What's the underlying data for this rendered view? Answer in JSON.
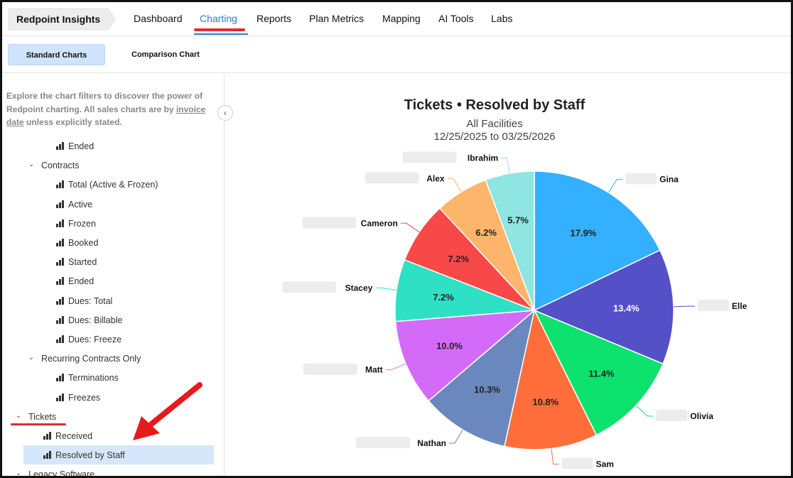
{
  "brand": "Redpoint Insights",
  "nav": [
    "Dashboard",
    "Charting",
    "Reports",
    "Plan Metrics",
    "Mapping",
    "AI Tools",
    "Labs"
  ],
  "subtabs": [
    "Standard Charts",
    "Comparison Chart"
  ],
  "sidebar": {
    "intro_1": "Explore the chart filters to discover the power of Redpoint charting. All sales charts are by ",
    "intro_link": "invoice date",
    "intro_2": " unless explicitly stated.",
    "tree": [
      {
        "label": "Ended",
        "type": "leaf",
        "level": 2
      },
      {
        "label": "Contracts",
        "type": "group",
        "level": 1
      },
      {
        "label": "Total (Active & Frozen)",
        "type": "leaf",
        "level": 2
      },
      {
        "label": "Active",
        "type": "leaf",
        "level": 2
      },
      {
        "label": "Frozen",
        "type": "leaf",
        "level": 2
      },
      {
        "label": "Booked",
        "type": "leaf",
        "level": 2
      },
      {
        "label": "Started",
        "type": "leaf",
        "level": 2
      },
      {
        "label": "Ended",
        "type": "leaf",
        "level": 2
      },
      {
        "label": "Dues: Total",
        "type": "leaf",
        "level": 2
      },
      {
        "label": "Dues: Billable",
        "type": "leaf",
        "level": 2
      },
      {
        "label": "Dues: Freeze",
        "type": "leaf",
        "level": 2
      },
      {
        "label": "Recurring Contracts Only",
        "type": "group",
        "level": 1
      },
      {
        "label": "Terminations",
        "type": "leaf",
        "level": 2
      },
      {
        "label": "Freezes",
        "type": "leaf",
        "level": 2
      },
      {
        "label": "Tickets",
        "type": "group",
        "level": 0
      },
      {
        "label": "Received",
        "type": "leaf",
        "level": 1
      },
      {
        "label": "Resolved by Staff",
        "type": "leaf",
        "level": 1,
        "selected": true
      },
      {
        "label": "Legacy Software",
        "type": "group",
        "level": 0
      }
    ]
  },
  "chart_data": {
    "type": "pie",
    "title": "Tickets • Resolved by Staff",
    "subtitle": "All Facilities",
    "date_range": "12/25/2025 to 03/25/2026",
    "slices": [
      {
        "name": "Gina",
        "value": 17.9,
        "label": "17.9%",
        "color": "#33b0ff"
      },
      {
        "name": "Elle",
        "value": 13.4,
        "label": "13.4%",
        "color": "#5450c8"
      },
      {
        "name": "Olivia",
        "value": 11.4,
        "label": "11.4%",
        "color": "#0de26e"
      },
      {
        "name": "Sam",
        "value": 10.8,
        "label": "10.8%",
        "color": "#ff6e3a"
      },
      {
        "name": "Nathan",
        "value": 10.3,
        "label": "10.3%",
        "color": "#6a88bd"
      },
      {
        "name": "Matt",
        "value": 10.0,
        "label": "10.0%",
        "color": "#d36bf8"
      },
      {
        "name": "Stacey",
        "value": 7.2,
        "label": "7.2%",
        "color": "#2ee0c4"
      },
      {
        "name": "Cameron",
        "value": 7.2,
        "label": "7.2%",
        "color": "#f94848"
      },
      {
        "name": "Alex",
        "value": 6.2,
        "label": "6.2%",
        "color": "#fdb56c"
      },
      {
        "name": "Ibrahim",
        "value": 5.7,
        "label": "5.7%",
        "color": "#8fe5e1"
      }
    ]
  }
}
